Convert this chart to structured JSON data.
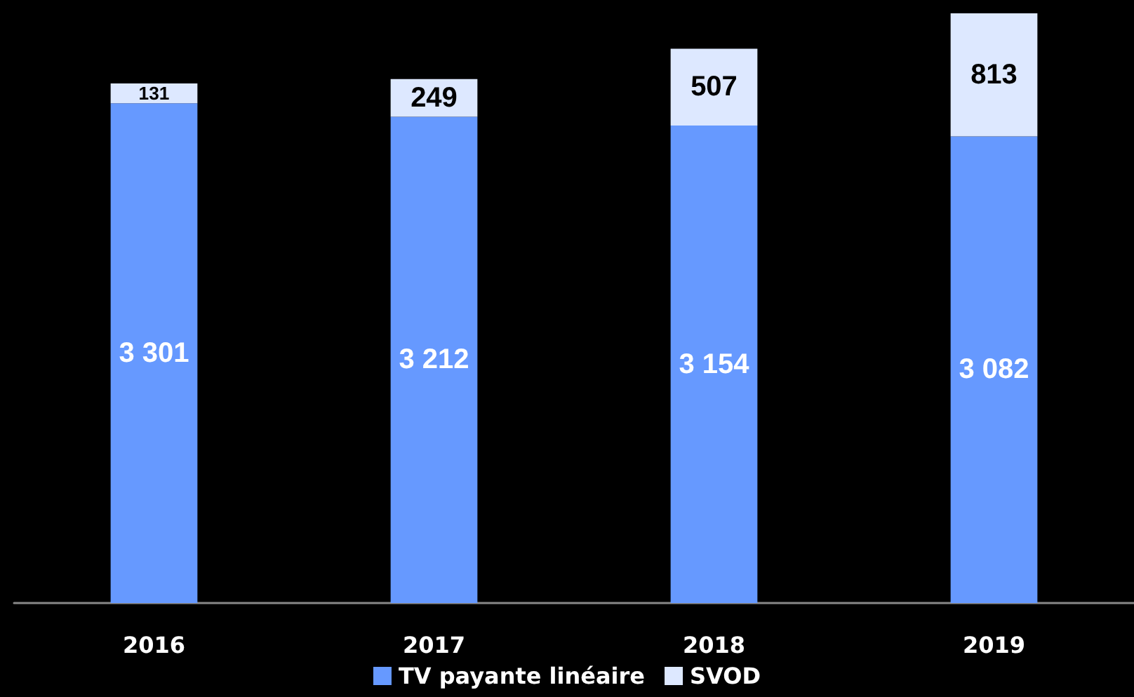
{
  "chart_data": {
    "type": "bar",
    "stacked": true,
    "categories": [
      "2016",
      "2017",
      "2018",
      "2019"
    ],
    "series": [
      {
        "name": "TV payante linéaire",
        "color": "#6699ff",
        "values": [
          3301,
          3212,
          3154,
          3082
        ],
        "value_labels": [
          "3 301",
          "3 212",
          "3 154",
          "3 082"
        ]
      },
      {
        "name": "SVOD",
        "color": "#dde8ff",
        "values": [
          131,
          249,
          507,
          813
        ],
        "value_labels": [
          "131",
          "249",
          "507",
          "813"
        ]
      }
    ],
    "ylim": [
      0,
      3900
    ],
    "tick_labels": "x",
    "legend": "bottom"
  }
}
